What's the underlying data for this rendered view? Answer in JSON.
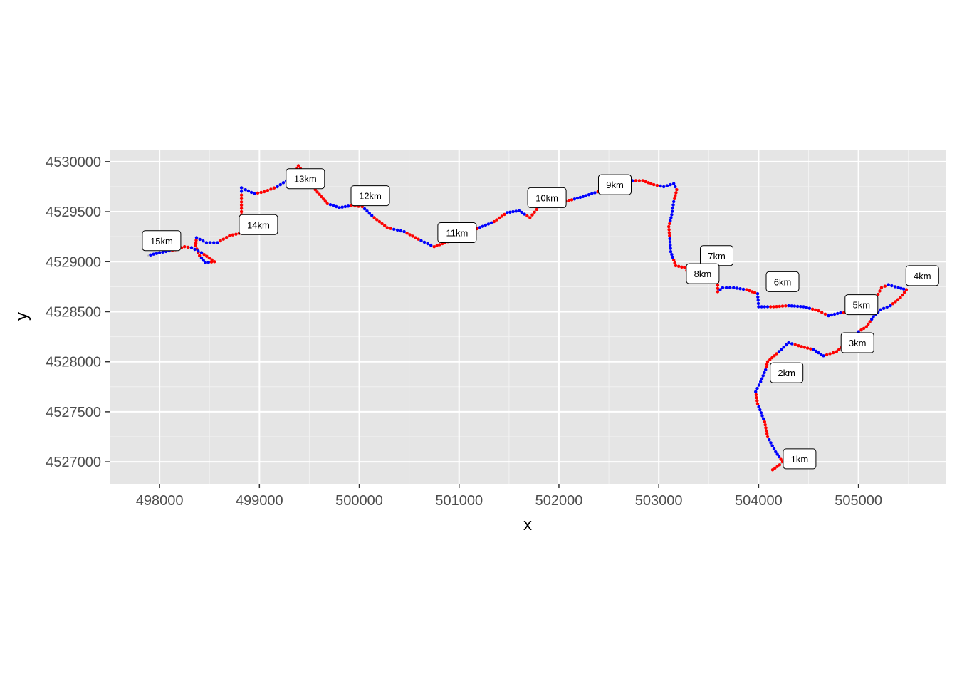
{
  "chart_data": {
    "type": "line",
    "title": "",
    "xlabel": "x",
    "ylabel": "y",
    "xlim": [
      497500,
      505880
    ],
    "ylim": [
      4526780,
      4530120
    ],
    "x_ticks": [
      498000,
      499000,
      500000,
      501000,
      502000,
      503000,
      504000,
      505000
    ],
    "y_ticks": [
      4527000,
      4527500,
      4528000,
      4528500,
      4529000,
      4529500,
      4530000
    ],
    "grid": true,
    "panel_background": "#e5e5e5",
    "path_color": "#b3b3b3",
    "point_colors": [
      "#ff0000",
      "#0000ff"
    ],
    "track": [
      [
        504140,
        4526920
      ],
      [
        504210,
        4526970
      ],
      [
        504240,
        4527000
      ],
      [
        504170,
        4527100
      ],
      [
        504090,
        4527250
      ],
      [
        504060,
        4527400
      ],
      [
        503990,
        4527580
      ],
      [
        503970,
        4527700
      ],
      [
        504020,
        4527800
      ],
      [
        504070,
        4527920
      ],
      [
        504090,
        4528000
      ],
      [
        504180,
        4528080
      ],
      [
        504300,
        4528190
      ],
      [
        504400,
        4528160
      ],
      [
        504550,
        4528120
      ],
      [
        504650,
        4528060
      ],
      [
        504780,
        4528100
      ],
      [
        504900,
        4528200
      ],
      [
        505000,
        4528300
      ],
      [
        505080,
        4528350
      ],
      [
        505150,
        4528450
      ],
      [
        505220,
        4528520
      ],
      [
        505320,
        4528560
      ],
      [
        505420,
        4528640
      ],
      [
        505480,
        4528720
      ],
      [
        505400,
        4528740
      ],
      [
        505300,
        4528770
      ],
      [
        505230,
        4528740
      ],
      [
        505180,
        4528640
      ],
      [
        505130,
        4528550
      ],
      [
        505050,
        4528520
      ],
      [
        504950,
        4528490
      ],
      [
        504820,
        4528490
      ],
      [
        504700,
        4528460
      ],
      [
        504600,
        4528510
      ],
      [
        504450,
        4528550
      ],
      [
        504300,
        4528560
      ],
      [
        504150,
        4528550
      ],
      [
        504000,
        4528550
      ],
      [
        503990,
        4528680
      ],
      [
        503880,
        4528720
      ],
      [
        503750,
        4528740
      ],
      [
        503640,
        4528740
      ],
      [
        503590,
        4528700
      ],
      [
        503590,
        4528830
      ],
      [
        503530,
        4528860
      ],
      [
        503420,
        4528840
      ],
      [
        503320,
        4528850
      ],
      [
        503260,
        4528940
      ],
      [
        503170,
        4528960
      ],
      [
        503120,
        4529100
      ],
      [
        503110,
        4529230
      ],
      [
        503100,
        4529350
      ],
      [
        503130,
        4529470
      ],
      [
        503150,
        4529600
      ],
      [
        503180,
        4529720
      ],
      [
        503150,
        4529780
      ],
      [
        503050,
        4529750
      ],
      [
        502950,
        4529770
      ],
      [
        502840,
        4529810
      ],
      [
        502700,
        4529810
      ],
      [
        502550,
        4529780
      ],
      [
        502420,
        4529710
      ],
      [
        502270,
        4529660
      ],
      [
        502100,
        4529610
      ],
      [
        501940,
        4529580
      ],
      [
        501800,
        4529550
      ],
      [
        501710,
        4529440
      ],
      [
        501600,
        4529510
      ],
      [
        501480,
        4529490
      ],
      [
        501350,
        4529400
      ],
      [
        501180,
        4529330
      ],
      [
        501000,
        4529240
      ],
      [
        500860,
        4529190
      ],
      [
        500750,
        4529150
      ],
      [
        500620,
        4529210
      ],
      [
        500450,
        4529300
      ],
      [
        500280,
        4529340
      ],
      [
        500150,
        4529440
      ],
      [
        500030,
        4529550
      ],
      [
        499920,
        4529560
      ],
      [
        499800,
        4529540
      ],
      [
        499680,
        4529580
      ],
      [
        499560,
        4529720
      ],
      [
        499500,
        4529790
      ],
      [
        499450,
        4529880
      ],
      [
        499390,
        4529960
      ],
      [
        499300,
        4529830
      ],
      [
        499180,
        4529750
      ],
      [
        499050,
        4529700
      ],
      [
        498950,
        4529680
      ],
      [
        498860,
        4529720
      ],
      [
        498820,
        4529740
      ],
      [
        498820,
        4529630
      ],
      [
        498820,
        4529500
      ],
      [
        498830,
        4529290
      ],
      [
        498700,
        4529260
      ],
      [
        498580,
        4529190
      ],
      [
        498470,
        4529190
      ],
      [
        498370,
        4529240
      ],
      [
        498360,
        4529160
      ],
      [
        498400,
        4529060
      ],
      [
        498460,
        4528990
      ],
      [
        498550,
        4529000
      ],
      [
        498420,
        4529090
      ],
      [
        498320,
        4529140
      ],
      [
        498250,
        4529150
      ],
      [
        498160,
        4529120
      ],
      [
        498000,
        4529090
      ],
      [
        497880,
        4529060
      ]
    ],
    "km_labels": [
      {
        "text": "1km",
        "x": 504410,
        "y": 4527030
      },
      {
        "text": "2km",
        "x": 504280,
        "y": 4527890
      },
      {
        "text": "3km",
        "x": 504990,
        "y": 4528190
      },
      {
        "text": "4km",
        "x": 505640,
        "y": 4528860
      },
      {
        "text": "5km",
        "x": 505030,
        "y": 4528570
      },
      {
        "text": "6km",
        "x": 504240,
        "y": 4528800
      },
      {
        "text": "7km",
        "x": 503580,
        "y": 4529060
      },
      {
        "text": "8km",
        "x": 503440,
        "y": 4528880
      },
      {
        "text": "9km",
        "x": 502560,
        "y": 4529770
      },
      {
        "text": "10km",
        "x": 501880,
        "y": 4529640
      },
      {
        "text": "11km",
        "x": 500980,
        "y": 4529290
      },
      {
        "text": "12km",
        "x": 500110,
        "y": 4529660
      },
      {
        "text": "13km",
        "x": 499460,
        "y": 4529830
      },
      {
        "text": "14km",
        "x": 498990,
        "y": 4529370
      },
      {
        "text": "15km",
        "x": 498020,
        "y": 4529210
      }
    ]
  }
}
